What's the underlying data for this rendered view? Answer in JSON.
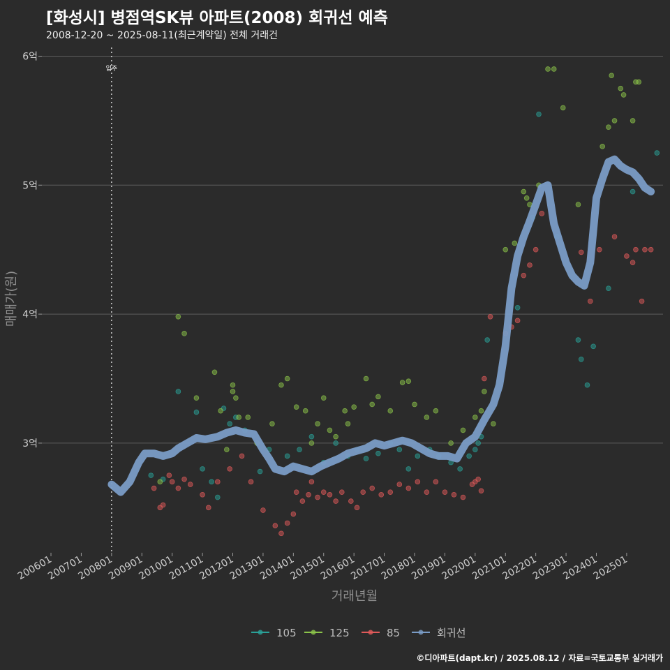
{
  "title": "[화성시] 병점역SK뷰 아파트(2008) 회귀선 예측",
  "subtitle": "2008-12-20 ~ 2025-08-11(최근계약일) 전체 거래건",
  "caption": "©디아파트(dapt.kr) / 2025.08.12 / 자료=국토교통부 실거래가",
  "chart_data": {
    "type": "scatter",
    "xlabel": "거래년월",
    "ylabel": "매매가(원)",
    "xlim": [
      2005.7,
      2026.2
    ],
    "ylim": [
      2.15,
      6.1
    ],
    "y_ticks": [
      {
        "value": 3,
        "label": "3억"
      },
      {
        "value": 4,
        "label": "4억"
      },
      {
        "value": 5,
        "label": "5억"
      },
      {
        "value": 6,
        "label": "6억"
      }
    ],
    "x_ticks": [
      {
        "value": 2006,
        "label": "200601"
      },
      {
        "value": 2007,
        "label": "200701"
      },
      {
        "value": 2008,
        "label": "200801"
      },
      {
        "value": 2009,
        "label": "200901"
      },
      {
        "value": 2010,
        "label": "201001"
      },
      {
        "value": 2011,
        "label": "201101"
      },
      {
        "value": 2012,
        "label": "201201"
      },
      {
        "value": 2013,
        "label": "201301"
      },
      {
        "value": 2014,
        "label": "201401"
      },
      {
        "value": 2015,
        "label": "201501"
      },
      {
        "value": 2016,
        "label": "201601"
      },
      {
        "value": 2017,
        "label": "201701"
      },
      {
        "value": 2018,
        "label": "201801"
      },
      {
        "value": 2019,
        "label": "201901"
      },
      {
        "value": 2020,
        "label": "202001"
      },
      {
        "value": 2021,
        "label": "202101"
      },
      {
        "value": 2022,
        "label": "202201"
      },
      {
        "value": 2023,
        "label": "202301"
      },
      {
        "value": 2024,
        "label": "202401"
      },
      {
        "value": 2025,
        "label": "202501"
      }
    ],
    "reference_line": {
      "x": 2008.0,
      "label": "입주"
    },
    "legend_position": "bottom",
    "grid": true,
    "series": [
      {
        "name": "105",
        "color": "#2aa198",
        "points": [
          [
            2009.3,
            2.75
          ],
          [
            2009.7,
            2.72
          ],
          [
            2010.2,
            3.4
          ],
          [
            2010.8,
            3.24
          ],
          [
            2011.0,
            2.8
          ],
          [
            2011.3,
            2.7
          ],
          [
            2011.5,
            2.58
          ],
          [
            2011.7,
            3.27
          ],
          [
            2011.9,
            3.15
          ],
          [
            2012.1,
            3.2
          ],
          [
            2012.4,
            3.1
          ],
          [
            2012.9,
            2.78
          ],
          [
            2013.2,
            2.95
          ],
          [
            2013.8,
            2.9
          ],
          [
            2014.2,
            2.95
          ],
          [
            2014.6,
            3.05
          ],
          [
            2015.0,
            2.85
          ],
          [
            2015.4,
            3.0
          ],
          [
            2015.8,
            2.9
          ],
          [
            2016.1,
            2.95
          ],
          [
            2016.4,
            2.88
          ],
          [
            2016.8,
            2.92
          ],
          [
            2017.2,
            3.0
          ],
          [
            2017.5,
            2.95
          ],
          [
            2017.8,
            2.8
          ],
          [
            2018.1,
            2.9
          ],
          [
            2018.5,
            2.95
          ],
          [
            2018.8,
            2.9
          ],
          [
            2019.2,
            2.85
          ],
          [
            2019.5,
            2.8
          ],
          [
            2019.8,
            2.9
          ],
          [
            2020.0,
            2.95
          ],
          [
            2020.1,
            3.0
          ],
          [
            2020.2,
            3.05
          ],
          [
            2020.4,
            3.8
          ],
          [
            2021.4,
            4.05
          ],
          [
            2021.9,
            4.75
          ],
          [
            2022.1,
            5.55
          ],
          [
            2022.7,
            4.6
          ],
          [
            2023.4,
            3.8
          ],
          [
            2023.5,
            3.65
          ],
          [
            2023.7,
            3.45
          ],
          [
            2023.9,
            3.75
          ],
          [
            2024.4,
            4.2
          ],
          [
            2025.2,
            4.95
          ],
          [
            2026.0,
            5.25
          ]
        ]
      },
      {
        "name": "125",
        "color": "#8bc34a",
        "points": [
          [
            2009.6,
            2.7
          ],
          [
            2010.2,
            3.98
          ],
          [
            2010.4,
            3.85
          ],
          [
            2010.8,
            3.35
          ],
          [
            2011.4,
            3.55
          ],
          [
            2011.6,
            3.25
          ],
          [
            2011.8,
            2.95
          ],
          [
            2012.0,
            3.45
          ],
          [
            2012.0,
            3.4
          ],
          [
            2012.1,
            3.35
          ],
          [
            2012.2,
            3.2
          ],
          [
            2012.5,
            3.2
          ],
          [
            2012.8,
            3.0
          ],
          [
            2013.3,
            3.15
          ],
          [
            2013.6,
            3.45
          ],
          [
            2013.8,
            3.5
          ],
          [
            2014.1,
            3.28
          ],
          [
            2014.4,
            3.25
          ],
          [
            2014.6,
            3.0
          ],
          [
            2014.8,
            3.15
          ],
          [
            2015.0,
            3.35
          ],
          [
            2015.2,
            3.1
          ],
          [
            2015.4,
            3.05
          ],
          [
            2015.7,
            3.25
          ],
          [
            2015.8,
            3.15
          ],
          [
            2016.0,
            3.28
          ],
          [
            2016.4,
            3.5
          ],
          [
            2016.6,
            3.3
          ],
          [
            2016.8,
            3.36
          ],
          [
            2017.2,
            3.25
          ],
          [
            2017.6,
            3.47
          ],
          [
            2017.8,
            3.48
          ],
          [
            2018.0,
            3.3
          ],
          [
            2018.4,
            3.2
          ],
          [
            2018.7,
            3.25
          ],
          [
            2019.2,
            3.0
          ],
          [
            2019.6,
            3.1
          ],
          [
            2020.0,
            3.2
          ],
          [
            2020.2,
            3.25
          ],
          [
            2020.3,
            3.4
          ],
          [
            2020.6,
            3.15
          ],
          [
            2021.0,
            4.5
          ],
          [
            2021.3,
            4.55
          ],
          [
            2021.6,
            4.95
          ],
          [
            2021.7,
            4.9
          ],
          [
            2021.8,
            4.85
          ],
          [
            2022.1,
            5.0
          ],
          [
            2022.4,
            5.9
          ],
          [
            2022.6,
            5.9
          ],
          [
            2022.9,
            5.6
          ],
          [
            2024.2,
            5.3
          ],
          [
            2024.4,
            5.45
          ],
          [
            2024.5,
            5.85
          ],
          [
            2024.6,
            5.5
          ],
          [
            2024.8,
            5.75
          ],
          [
            2024.9,
            5.7
          ],
          [
            2025.2,
            5.5
          ],
          [
            2025.3,
            5.8
          ],
          [
            2025.4,
            5.8
          ],
          [
            2023.4,
            4.85
          ]
        ]
      },
      {
        "name": "85",
        "color": "#e05a5a",
        "points": [
          [
            2009.4,
            2.65
          ],
          [
            2009.6,
            2.5
          ],
          [
            2009.7,
            2.52
          ],
          [
            2009.9,
            2.75
          ],
          [
            2010.0,
            2.7
          ],
          [
            2010.2,
            2.65
          ],
          [
            2010.4,
            2.72
          ],
          [
            2010.6,
            2.68
          ],
          [
            2011.0,
            2.6
          ],
          [
            2011.2,
            2.5
          ],
          [
            2011.5,
            2.7
          ],
          [
            2011.9,
            2.8
          ],
          [
            2012.3,
            2.9
          ],
          [
            2012.6,
            2.7
          ],
          [
            2013.0,
            2.48
          ],
          [
            2013.4,
            2.36
          ],
          [
            2013.6,
            2.3
          ],
          [
            2013.8,
            2.38
          ],
          [
            2014.0,
            2.45
          ],
          [
            2014.1,
            2.62
          ],
          [
            2014.3,
            2.55
          ],
          [
            2014.5,
            2.6
          ],
          [
            2014.6,
            2.7
          ],
          [
            2014.8,
            2.58
          ],
          [
            2015.0,
            2.62
          ],
          [
            2015.2,
            2.6
          ],
          [
            2015.4,
            2.55
          ],
          [
            2015.6,
            2.62
          ],
          [
            2015.9,
            2.55
          ],
          [
            2016.1,
            2.5
          ],
          [
            2016.3,
            2.62
          ],
          [
            2016.6,
            2.65
          ],
          [
            2016.9,
            2.6
          ],
          [
            2017.2,
            2.62
          ],
          [
            2017.5,
            2.68
          ],
          [
            2017.8,
            2.65
          ],
          [
            2018.1,
            2.7
          ],
          [
            2018.4,
            2.62
          ],
          [
            2018.7,
            2.7
          ],
          [
            2019.0,
            2.62
          ],
          [
            2019.3,
            2.6
          ],
          [
            2019.6,
            2.58
          ],
          [
            2019.9,
            2.68
          ],
          [
            2020.0,
            2.7
          ],
          [
            2020.1,
            2.72
          ],
          [
            2020.2,
            2.63
          ],
          [
            2020.3,
            3.5
          ],
          [
            2020.5,
            3.98
          ],
          [
            2021.0,
            3.85
          ],
          [
            2021.2,
            3.9
          ],
          [
            2021.4,
            3.95
          ],
          [
            2021.6,
            4.3
          ],
          [
            2021.8,
            4.38
          ],
          [
            2022.0,
            4.5
          ],
          [
            2022.2,
            4.78
          ],
          [
            2023.5,
            4.48
          ],
          [
            2023.8,
            4.1
          ],
          [
            2024.1,
            4.5
          ],
          [
            2024.6,
            4.6
          ],
          [
            2025.0,
            4.45
          ],
          [
            2025.2,
            4.4
          ],
          [
            2025.3,
            4.5
          ],
          [
            2025.5,
            4.1
          ],
          [
            2025.6,
            4.5
          ],
          [
            2025.8,
            4.5
          ]
        ]
      }
    ],
    "regression": {
      "name": "회귀선",
      "color": "#7a9cc6",
      "points": [
        [
          2008.0,
          2.68
        ],
        [
          2008.3,
          2.62
        ],
        [
          2008.6,
          2.7
        ],
        [
          2008.9,
          2.85
        ],
        [
          2009.1,
          2.92
        ],
        [
          2009.4,
          2.92
        ],
        [
          2009.7,
          2.9
        ],
        [
          2010.0,
          2.92
        ],
        [
          2010.2,
          2.96
        ],
        [
          2010.5,
          3.0
        ],
        [
          2010.8,
          3.04
        ],
        [
          2011.1,
          3.03
        ],
        [
          2011.5,
          3.05
        ],
        [
          2011.8,
          3.08
        ],
        [
          2012.1,
          3.1
        ],
        [
          2012.4,
          3.08
        ],
        [
          2012.7,
          3.07
        ],
        [
          2013.0,
          2.95
        ],
        [
          2013.2,
          2.88
        ],
        [
          2013.4,
          2.8
        ],
        [
          2013.7,
          2.78
        ],
        [
          2014.0,
          2.82
        ],
        [
          2014.3,
          2.8
        ],
        [
          2014.6,
          2.78
        ],
        [
          2014.9,
          2.82
        ],
        [
          2015.2,
          2.85
        ],
        [
          2015.5,
          2.88
        ],
        [
          2015.8,
          2.92
        ],
        [
          2016.1,
          2.94
        ],
        [
          2016.4,
          2.96
        ],
        [
          2016.7,
          3.0
        ],
        [
          2017.0,
          2.98
        ],
        [
          2017.3,
          3.0
        ],
        [
          2017.6,
          3.02
        ],
        [
          2017.9,
          3.0
        ],
        [
          2018.2,
          2.96
        ],
        [
          2018.5,
          2.92
        ],
        [
          2018.8,
          2.9
        ],
        [
          2019.1,
          2.9
        ],
        [
          2019.4,
          2.88
        ],
        [
          2019.7,
          3.0
        ],
        [
          2020.0,
          3.05
        ],
        [
          2020.3,
          3.18
        ],
        [
          2020.6,
          3.3
        ],
        [
          2020.8,
          3.45
        ],
        [
          2021.0,
          3.75
        ],
        [
          2021.2,
          4.2
        ],
        [
          2021.4,
          4.45
        ],
        [
          2021.6,
          4.6
        ],
        [
          2021.8,
          4.72
        ],
        [
          2022.0,
          4.85
        ],
        [
          2022.2,
          4.98
        ],
        [
          2022.4,
          5.0
        ],
        [
          2022.6,
          4.7
        ],
        [
          2022.8,
          4.55
        ],
        [
          2023.0,
          4.4
        ],
        [
          2023.2,
          4.3
        ],
        [
          2023.4,
          4.25
        ],
        [
          2023.6,
          4.22
        ],
        [
          2023.8,
          4.4
        ],
        [
          2024.0,
          4.9
        ],
        [
          2024.2,
          5.05
        ],
        [
          2024.4,
          5.18
        ],
        [
          2024.6,
          5.2
        ],
        [
          2024.8,
          5.15
        ],
        [
          2025.0,
          5.12
        ],
        [
          2025.2,
          5.1
        ],
        [
          2025.4,
          5.05
        ],
        [
          2025.6,
          4.98
        ],
        [
          2025.8,
          4.95
        ]
      ]
    }
  }
}
